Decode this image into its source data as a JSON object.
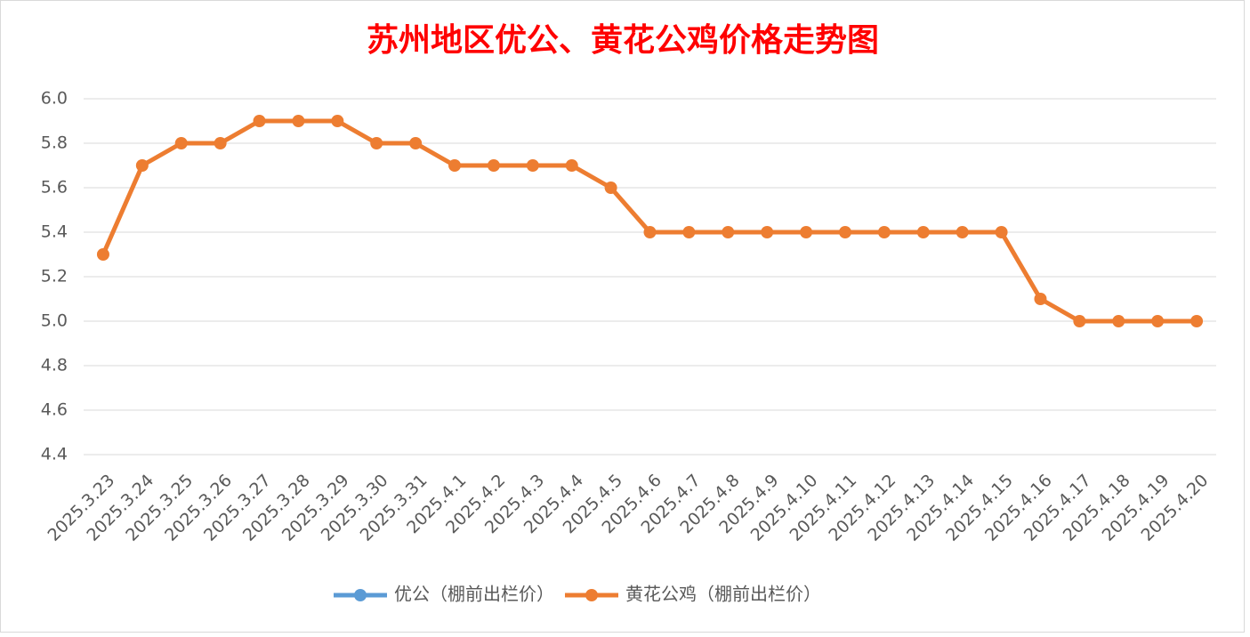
{
  "chart_data": {
    "type": "line",
    "title": "苏州地区优公、黄花公鸡价格走势图",
    "categories": [
      "2025.3.23",
      "2025.3.24",
      "2025.3.25",
      "2025.3.26",
      "2025.3.27",
      "2025.3.28",
      "2025.3.29",
      "2025.3.30",
      "2025.3.31",
      "2025.4.1",
      "2025.4.2",
      "2025.4.3",
      "2025.4.4",
      "2025.4.5",
      "2025.4.6",
      "2025.4.7",
      "2025.4.8",
      "2025.4.9",
      "2025.4.10",
      "2025.4.11",
      "2025.4.12",
      "2025.4.13",
      "2025.4.14",
      "2025.4.15",
      "2025.4.16",
      "2025.4.17",
      "2025.4.18",
      "2025.4.19",
      "2025.4.20"
    ],
    "series": [
      {
        "name": "优公（棚前出栏价）",
        "color": "#5b9bd5",
        "values": [
          null,
          null,
          null,
          null,
          null,
          null,
          null,
          null,
          null,
          null,
          null,
          null,
          null,
          null,
          null,
          null,
          null,
          null,
          null,
          null,
          null,
          null,
          null,
          null,
          null,
          null,
          null,
          null,
          null
        ]
      },
      {
        "name": "黄花公鸡（棚前出栏价）",
        "color": "#ed7d31",
        "values": [
          5.3,
          5.7,
          5.8,
          5.8,
          5.9,
          5.9,
          5.9,
          5.8,
          5.8,
          5.7,
          5.7,
          5.7,
          5.7,
          5.6,
          5.4,
          5.4,
          5.4,
          5.4,
          5.4,
          5.4,
          5.4,
          5.4,
          5.4,
          5.4,
          5.1,
          5.0,
          5.0,
          5.0,
          5.0
        ]
      }
    ],
    "ylim": [
      4.4,
      6.0
    ],
    "yticks": [
      4.4,
      4.6,
      4.8,
      {
        "value": 5,
        "label": "5.0"
      },
      5.2,
      5.4,
      5.6,
      5.8,
      {
        "value": 6,
        "label": "6.0"
      }
    ],
    "grid": true,
    "legend": "bottom"
  }
}
